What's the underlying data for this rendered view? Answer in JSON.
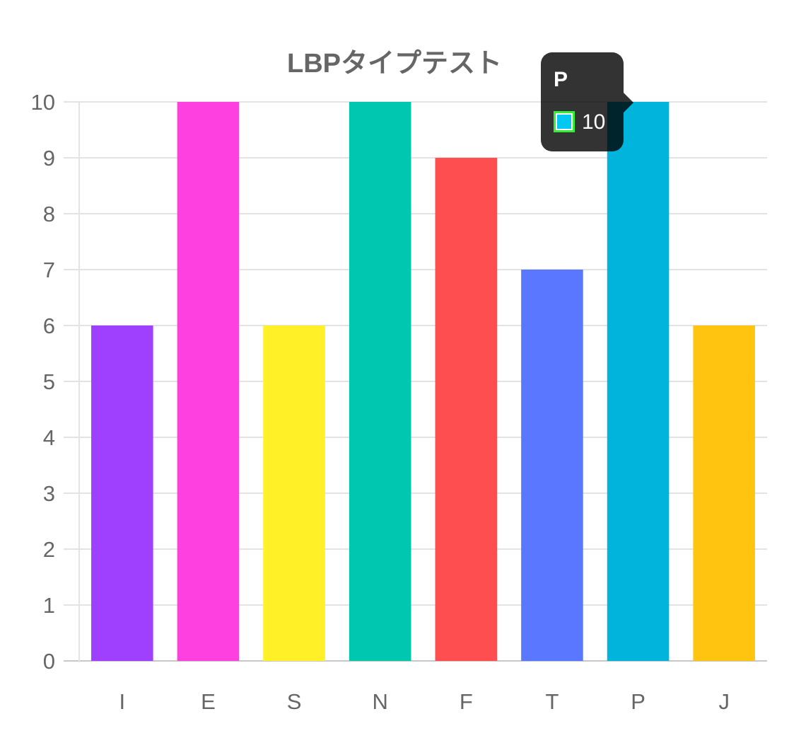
{
  "chart_data": {
    "type": "bar",
    "title": "LBPタイプテスト",
    "categories": [
      "I",
      "E",
      "S",
      "N",
      "F",
      "T",
      "P",
      "J"
    ],
    "values": [
      6,
      10,
      6,
      10,
      9,
      7,
      10,
      6
    ],
    "colors": [
      "#a040ff",
      "#ff40e0",
      "#fff028",
      "#00c8b0",
      "#ff4e50",
      "#5a78ff",
      "#00b4dc",
      "#ffc410"
    ],
    "ylim": [
      0,
      10
    ],
    "yticks": [
      0,
      1,
      2,
      3,
      4,
      5,
      6,
      7,
      8,
      9,
      10
    ],
    "grid": true,
    "xlabel": "",
    "ylabel": ""
  },
  "tooltip": {
    "title": "P",
    "value": "10",
    "swatch_color": "#00c8f0"
  }
}
